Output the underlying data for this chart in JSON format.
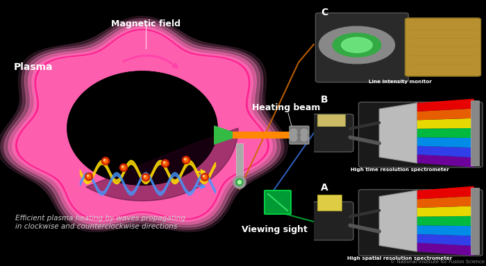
{
  "bg_color": "#000000",
  "fig_width": 7.0,
  "fig_height": 3.84,
  "dpi": 100,
  "panel_A_bg": "#6a0000",
  "panel_B_bg": "#071840",
  "panel_C_bg": "#0a2a0a",
  "panel_label_color": "#ffffff",
  "plasma_pink": "#ff80c0",
  "plasma_hot": "#ff1493",
  "plasma_glow": "#ffaadd",
  "wave_blue": "#4499ff",
  "wave_yellow": "#ffcc00",
  "beam_orange": "#ff8800",
  "beam_green": "#33bb44",
  "view_green": "#00bb44",
  "text_white": "#ffffff",
  "text_gray": "#cccccc",
  "copyright_color": "#888888",
  "label_A": "A",
  "label_B": "B",
  "label_C": "C",
  "label_A_text": "High spatial resolution spectrometer",
  "label_B_text": "High time resolution spectrometer",
  "label_C_text": "Line intensity monitor",
  "title_plasma": "Plasma",
  "title_mag": "Magnetic field",
  "title_beam": "Heating beam",
  "title_view": "Viewing sight",
  "caption": "Efficient plasma heating by waves propagating\nin clockwise and counterclockwise directions",
  "copyright": "© National Institute for Fusion Science",
  "rainbow_colors": [
    "#7700aa",
    "#3344ff",
    "#0099ff",
    "#00cc44",
    "#ffee00",
    "#ff6600",
    "#ff0000"
  ]
}
